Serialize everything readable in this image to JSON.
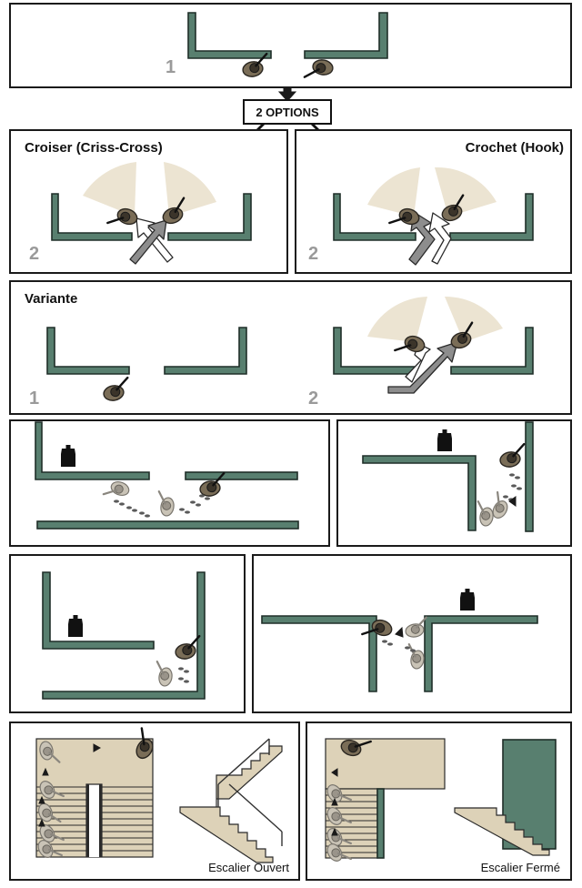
{
  "colors": {
    "wall": "#587f6f",
    "cone": "#ece4d2",
    "floor": "#ddd2b8",
    "number": "#9a9a9a",
    "arrow": "#8d8d8d"
  },
  "icons": [
    "soldier-icon",
    "target-silhouette-icon",
    "footsteps-icon",
    "arrow-icon"
  ],
  "step1": {
    "number": "1"
  },
  "options": {
    "label": "2 OPTIONS"
  },
  "criss_cross": {
    "title": "Croiser (Criss-Cross)",
    "number": "2"
  },
  "hook": {
    "title": "Crochet (Hook)",
    "number": "2"
  },
  "variante": {
    "title": "Variante",
    "number_left": "1",
    "number_right": "2"
  },
  "stairs": {
    "open_caption": "Escalier Ouvert",
    "closed_caption": "Escalier Fermé"
  }
}
